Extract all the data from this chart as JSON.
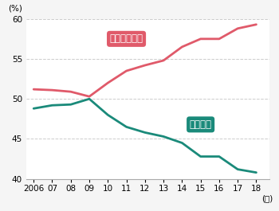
{
  "years": [
    2006,
    2007,
    2008,
    2009,
    2010,
    2011,
    2012,
    2013,
    2014,
    2015,
    2016,
    2017,
    2018
  ],
  "clinical": [
    51.2,
    51.1,
    50.9,
    50.3,
    52.0,
    53.5,
    54.2,
    54.8,
    56.5,
    57.5,
    57.5,
    58.8,
    59.3
  ],
  "university": [
    48.8,
    49.2,
    49.3,
    50.0,
    48.0,
    46.5,
    45.8,
    45.3,
    44.5,
    42.8,
    42.8,
    41.2,
    40.8
  ],
  "clinical_color": "#e05a6a",
  "university_color": "#1a8a7a",
  "clinical_label": "臨床研修病院",
  "university_label": "大学病院",
  "ylabel": "(%)",
  "xlabel_suffix": "(年)",
  "ylim": [
    40,
    60
  ],
  "yticks": [
    40,
    45,
    50,
    55,
    60
  ],
  "xtick_labels": [
    "2006",
    "07",
    "08",
    "09",
    "10",
    "11",
    "12",
    "13",
    "14",
    "15",
    "16",
    "17",
    "18"
  ],
  "bg_color": "#f5f5f5",
  "plot_bg": "#ffffff",
  "grid_color": "#cccccc",
  "line_width": 2.0,
  "tick_fontsize": 7.5,
  "label_fontsize": 8.5
}
